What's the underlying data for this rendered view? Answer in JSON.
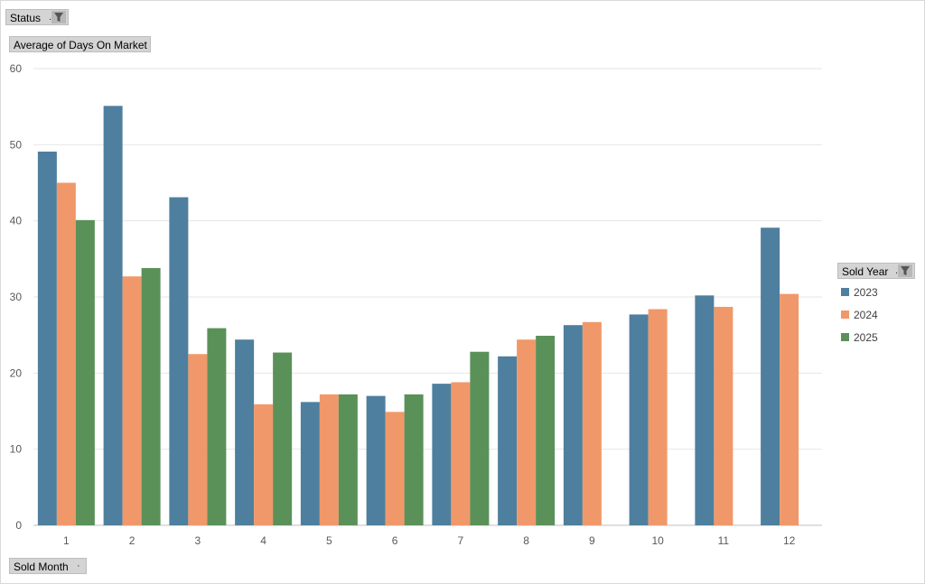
{
  "filters": {
    "status": {
      "label": "Status",
      "icon": "funnel-icon"
    },
    "value_field": {
      "label": "Average of Days On Market"
    },
    "axis_field": {
      "label": "Sold Month",
      "icon": "dropdown-dot-icon"
    },
    "legend_field": {
      "label": "Sold Year",
      "icon": "funnel-icon"
    }
  },
  "chart_data": {
    "type": "bar",
    "title": "",
    "xlabel": "",
    "ylabel": "",
    "categories": [
      "1",
      "2",
      "3",
      "4",
      "5",
      "6",
      "7",
      "8",
      "9",
      "10",
      "11",
      "12"
    ],
    "ylim": [
      0,
      60
    ],
    "yticks": [
      0,
      10,
      20,
      30,
      40,
      50,
      60
    ],
    "grid": true,
    "legend_position": "right",
    "series": [
      {
        "name": "2023",
        "color": "#4e7f9e",
        "values": [
          49.1,
          55.1,
          43.1,
          24.4,
          16.2,
          17.0,
          18.6,
          22.2,
          26.3,
          27.7,
          30.2,
          39.1
        ]
      },
      {
        "name": "2024",
        "color": "#f0986a",
        "values": [
          45.0,
          32.7,
          22.5,
          15.9,
          17.2,
          14.9,
          18.8,
          24.4,
          26.7,
          28.4,
          28.7,
          30.4
        ]
      },
      {
        "name": "2025",
        "color": "#5a9159",
        "values": [
          40.1,
          33.8,
          25.9,
          22.7,
          17.2,
          17.2,
          22.8,
          24.9,
          null,
          null,
          null,
          null
        ]
      }
    ]
  }
}
